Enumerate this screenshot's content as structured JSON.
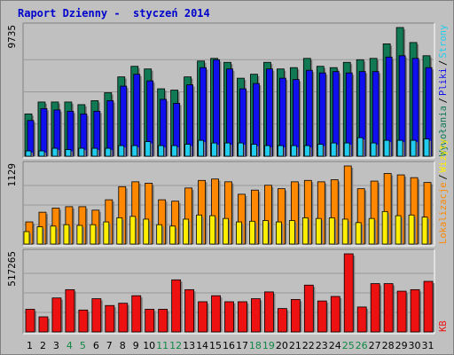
{
  "title": "Raport Dzienny -  styczeń 2014",
  "colors": {
    "background": "#c0c0c0",
    "plot_bg": "#c0c0c0",
    "title": "#0000cc",
    "hits": "#117a54",
    "files": "#1010ee",
    "pages": "#22ccee",
    "visits": "#ff8800",
    "sites": "#ffee00",
    "kbytes": "#ee1111",
    "weekend_day": "#118844",
    "weekday": "#000000"
  },
  "chart_data": [
    {
      "type": "bar",
      "panel": "top",
      "ymax_label": "9735",
      "ylim": [
        0,
        9735
      ],
      "categories": [
        "1",
        "2",
        "3",
        "4",
        "5",
        "6",
        "7",
        "8",
        "9",
        "10",
        "11",
        "12",
        "13",
        "14",
        "15",
        "16",
        "17",
        "18",
        "19",
        "20",
        "21",
        "22",
        "23",
        "24",
        "25",
        "26",
        "27",
        "28",
        "29",
        "30",
        "31"
      ],
      "legend": [
        {
          "text": "Wywołania",
          "color_key": "hits"
        },
        {
          "text": "/",
          "color_key": "weekday"
        },
        {
          "text": "Pliki",
          "color_key": "files"
        },
        {
          "text": "/",
          "color_key": "weekday"
        },
        {
          "text": "Strony",
          "color_key": "pages"
        }
      ],
      "series": [
        {
          "name": "Wywołania",
          "color_key": "hits",
          "values": [
            3200,
            4100,
            4100,
            4100,
            3900,
            4200,
            4800,
            6000,
            6800,
            6600,
            5100,
            5000,
            6000,
            7200,
            7400,
            7100,
            5900,
            6200,
            7100,
            6600,
            6700,
            7400,
            6800,
            6700,
            7100,
            7300,
            7400,
            8500,
            9735,
            8600,
            7600
          ]
        },
        {
          "name": "Pliki",
          "color_key": "files",
          "values": [
            2700,
            3600,
            3500,
            3400,
            3200,
            3400,
            4200,
            5300,
            6200,
            5700,
            4300,
            4000,
            5400,
            6700,
            7300,
            6600,
            5100,
            5500,
            6600,
            5900,
            5800,
            6500,
            6300,
            6400,
            6300,
            6400,
            6400,
            7500,
            7600,
            7400,
            6700
          ]
        },
        {
          "name": "Strony",
          "color_key": "pages",
          "values": [
            400,
            400,
            600,
            500,
            600,
            600,
            600,
            800,
            800,
            1100,
            800,
            800,
            900,
            1200,
            1000,
            1000,
            1000,
            900,
            800,
            800,
            800,
            800,
            900,
            1000,
            1000,
            1400,
            1000,
            1200,
            1200,
            1200,
            1300
          ]
        }
      ]
    },
    {
      "type": "bar",
      "panel": "middle",
      "ymax_label": "1129",
      "ylim": [
        0,
        1129
      ],
      "categories": [
        "1",
        "2",
        "3",
        "4",
        "5",
        "6",
        "7",
        "8",
        "9",
        "10",
        "11",
        "12",
        "13",
        "14",
        "15",
        "16",
        "17",
        "18",
        "19",
        "20",
        "21",
        "22",
        "23",
        "24",
        "25",
        "26",
        "27",
        "28",
        "29",
        "30",
        "31"
      ],
      "legend": [
        {
          "text": "Lokalizacje",
          "color_key": "visits"
        },
        {
          "text": "/",
          "color_key": "weekday"
        },
        {
          "text": "Wizyty",
          "color_key": "sites"
        }
      ],
      "series": [
        {
          "name": "Lokalizacje",
          "color_key": "visits",
          "values": [
            320,
            460,
            520,
            540,
            540,
            490,
            640,
            830,
            900,
            880,
            640,
            620,
            810,
            920,
            940,
            900,
            720,
            780,
            850,
            800,
            900,
            920,
            900,
            930,
            1129,
            800,
            910,
            1020,
            1000,
            960,
            890
          ]
        },
        {
          "name": "Wizyty",
          "color_key": "sites",
          "values": [
            180,
            250,
            260,
            280,
            270,
            280,
            320,
            380,
            400,
            360,
            280,
            260,
            360,
            420,
            410,
            370,
            320,
            330,
            340,
            320,
            340,
            380,
            370,
            380,
            360,
            310,
            370,
            470,
            410,
            420,
            390
          ]
        }
      ]
    },
    {
      "type": "bar",
      "panel": "bottom",
      "ymax_label": "517265",
      "ylim": [
        0,
        517265
      ],
      "categories": [
        "1",
        "2",
        "3",
        "4",
        "5",
        "6",
        "7",
        "8",
        "9",
        "10",
        "11",
        "12",
        "13",
        "14",
        "15",
        "16",
        "17",
        "18",
        "19",
        "20",
        "21",
        "22",
        "23",
        "24",
        "25",
        "26",
        "27",
        "28",
        "29",
        "30",
        "31"
      ],
      "legend": [
        {
          "text": "KB",
          "color_key": "kbytes"
        }
      ],
      "series": [
        {
          "name": "KB",
          "color_key": "kbytes",
          "values": [
            150000,
            100000,
            225000,
            280000,
            145000,
            220000,
            175000,
            190000,
            240000,
            150000,
            150000,
            345000,
            280000,
            200000,
            240000,
            200000,
            200000,
            220000,
            265000,
            155000,
            215000,
            310000,
            205000,
            235000,
            517265,
            165000,
            320000,
            320000,
            270000,
            280000,
            335000
          ]
        }
      ]
    }
  ],
  "x_axis": {
    "labels": [
      "1",
      "2",
      "3",
      "4",
      "5",
      "6",
      "7",
      "8",
      "9",
      "10",
      "11",
      "12",
      "13",
      "14",
      "15",
      "16",
      "17",
      "18",
      "19",
      "20",
      "21",
      "22",
      "23",
      "24",
      "25",
      "26",
      "27",
      "28",
      "29",
      "30",
      "31"
    ],
    "weekend_days": [
      "4",
      "5",
      "11",
      "12",
      "18",
      "19",
      "25",
      "26"
    ]
  }
}
